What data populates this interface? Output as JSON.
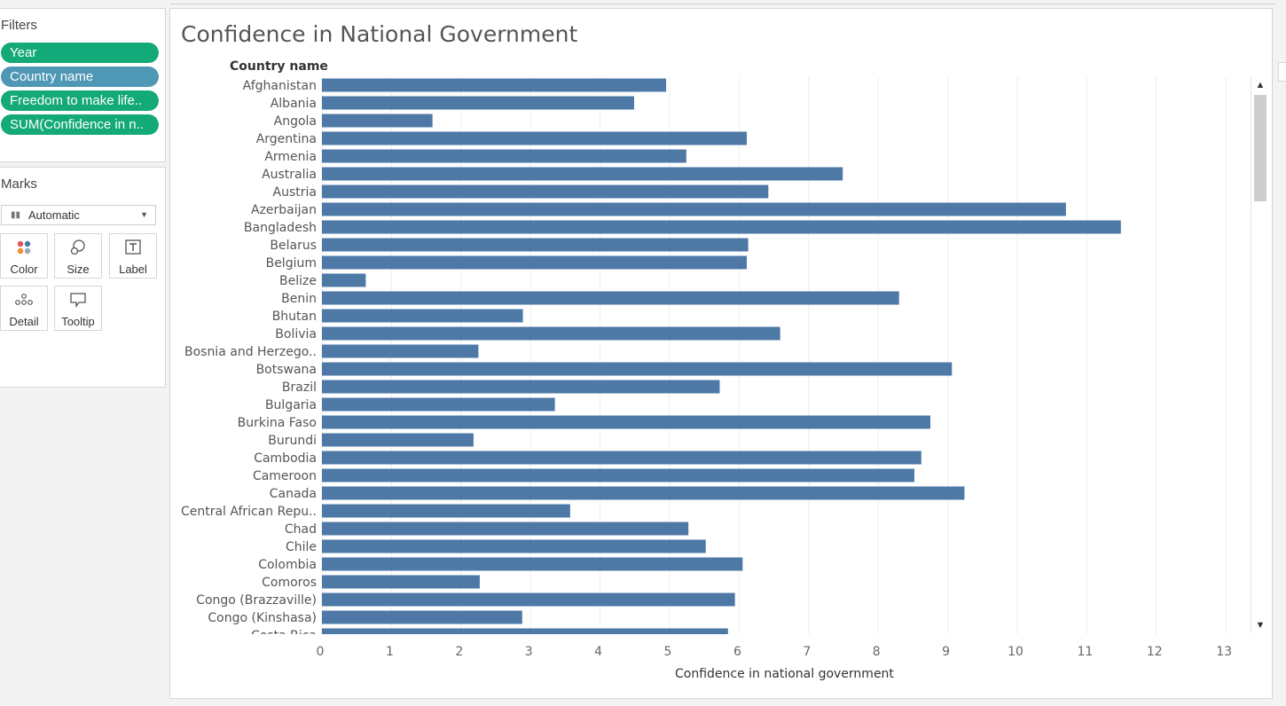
{
  "filters": {
    "title": "Filters",
    "pills": [
      {
        "label": "Year",
        "color": "#13a978"
      },
      {
        "label": "Country name",
        "color": "#4e97b5"
      },
      {
        "label": "Freedom to make life..",
        "color": "#13a978"
      },
      {
        "label": "SUM(Confidence in n..",
        "color": "#13a978"
      }
    ]
  },
  "marks": {
    "title": "Marks",
    "type": "Automatic",
    "buttons": [
      {
        "label": "Color",
        "icon": "color-icon"
      },
      {
        "label": "Size",
        "icon": "size-icon"
      },
      {
        "label": "Label",
        "icon": "label-icon"
      },
      {
        "label": "Detail",
        "icon": "detail-icon"
      },
      {
        "label": "Tooltip",
        "icon": "tooltip-icon"
      }
    ]
  },
  "view": {
    "title": "Confidence in National Government",
    "row_header": "Country name",
    "axis_title": "Confidence in national government"
  },
  "colors": {
    "bar": "#4e79a7",
    "grid": "#eeeeee",
    "filter_green": "#13a978",
    "filter_blue": "#4e97b5"
  },
  "chart_data": {
    "type": "bar",
    "orientation": "horizontal",
    "title": "Confidence in National Government",
    "xlabel": "Confidence in national government",
    "ylabel": "Country name",
    "xlim": [
      0,
      13
    ],
    "xticks": [
      0,
      1,
      2,
      3,
      4,
      5,
      6,
      7,
      8,
      9,
      10,
      11,
      12,
      13
    ],
    "grid": true,
    "categories": [
      "Afghanistan",
      "Albania",
      "Angola",
      "Argentina",
      "Armenia",
      "Australia",
      "Austria",
      "Azerbaijan",
      "Bangladesh",
      "Belarus",
      "Belgium",
      "Belize",
      "Benin",
      "Bhutan",
      "Bolivia",
      "Bosnia and Herzego..",
      "Botswana",
      "Brazil",
      "Bulgaria",
      "Burkina Faso",
      "Burundi",
      "Cambodia",
      "Cameroon",
      "Canada",
      "Central African Repu..",
      "Chad",
      "Chile",
      "Colombia",
      "Comoros",
      "Congo (Brazzaville)",
      "Congo (Kinshasa)",
      "Costa Rica"
    ],
    "values": [
      4.95,
      4.49,
      1.59,
      6.11,
      5.24,
      7.49,
      6.42,
      10.7,
      11.49,
      6.13,
      6.11,
      0.63,
      8.3,
      2.89,
      6.59,
      2.25,
      9.06,
      5.72,
      3.35,
      8.75,
      2.18,
      8.62,
      8.52,
      9.24,
      3.57,
      5.27,
      5.52,
      6.05,
      2.27,
      5.94,
      2.88,
      5.84
    ]
  }
}
